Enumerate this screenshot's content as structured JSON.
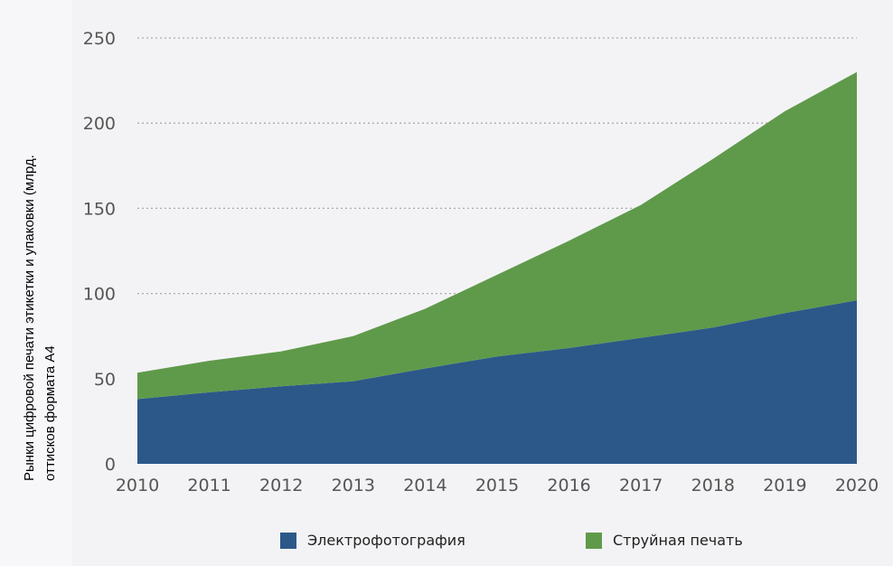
{
  "chart_data": {
    "type": "area",
    "stacked": true,
    "title": "",
    "xlabel": "",
    "ylabel_lines": [
      "Рынки цифровой печати этикетки и упаковки (млрд.",
      "оттисков формата А4"
    ],
    "x": [
      2010,
      2011,
      2012,
      2013,
      2014,
      2015,
      2016,
      2017,
      2018,
      2019,
      2020
    ],
    "x_ticks": [
      "2010",
      "2011",
      "2012",
      "2013",
      "2014",
      "2015",
      "2016",
      "2017",
      "2018",
      "2019",
      "2020"
    ],
    "y_ticks": [
      "0",
      "50",
      "100",
      "150",
      "200",
      "250"
    ],
    "ylim": [
      0,
      250
    ],
    "grid": "horizontal dotted",
    "legend_position": "bottom",
    "series": [
      {
        "name": "Электрофотография",
        "color": "#2c5889",
        "values": [
          38,
          42,
          45.5,
          48.5,
          56,
          63,
          68,
          74,
          80,
          88.5,
          96
        ]
      },
      {
        "name": "Струйная печать",
        "color": "#5f9a4a",
        "values": [
          15.5,
          18.5,
          20.5,
          26.5,
          35,
          48,
          63,
          78,
          99,
          118.5,
          134
        ]
      }
    ]
  }
}
